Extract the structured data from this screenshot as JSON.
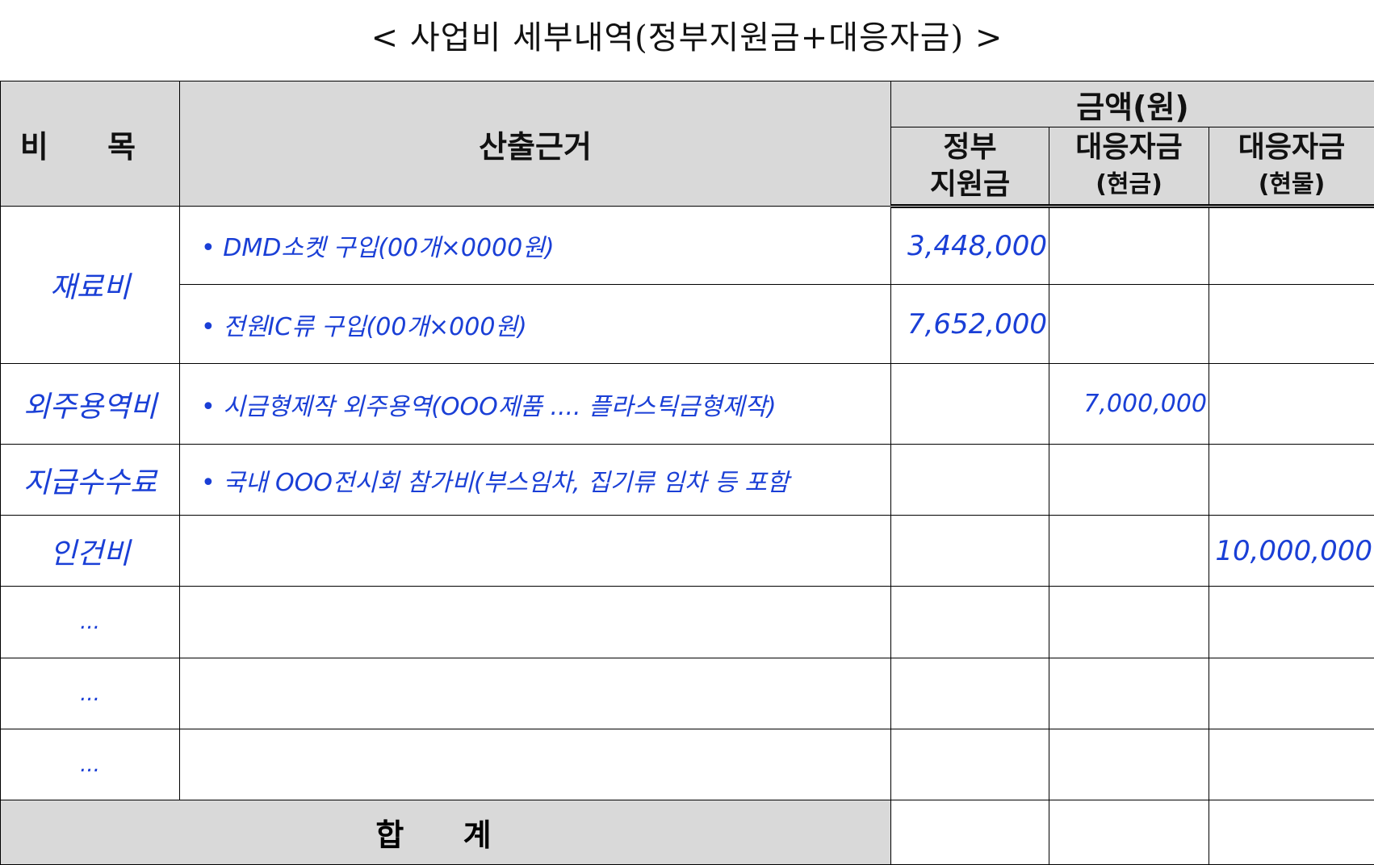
{
  "title": "< 사업비 세부내역(정부지원금+대응자금) >",
  "header": {
    "category": "비  목",
    "basis": "산출근거",
    "amount": "금액(원)",
    "gov_line1": "정부",
    "gov_line2": "지원금",
    "cash_line1": "대응자금",
    "cash_line2": "(현금)",
    "kind_line1": "대응자금",
    "kind_line2": "(현물)"
  },
  "rows": {
    "materials": {
      "category": "재료비",
      "items": [
        {
          "basis": "• DMD소켓 구입(00개×0000원)",
          "gov": "3,448,000",
          "cash": "",
          "kind": ""
        },
        {
          "basis": "• 전원IC류 구입(00개×000원)",
          "gov": "7,652,000",
          "cash": "",
          "kind": ""
        }
      ]
    },
    "outsourcing": {
      "category": "외주용역비",
      "basis": "• 시금형제작 외주용역(OOO제품 .... 플라스틱금형제작)",
      "gov": "",
      "cash": "7,000,000",
      "kind": ""
    },
    "fees": {
      "category": "지급수수료",
      "basis": "• 국내 OOO전시회 참가비(부스임차, 집기류 임차 등 포함",
      "gov": "",
      "cash": "",
      "kind": ""
    },
    "labor": {
      "category": "인건비",
      "basis": "",
      "gov": "",
      "cash": "",
      "kind": "10,000,000"
    },
    "extra": [
      {
        "category": "..."
      },
      {
        "category": "..."
      },
      {
        "category": "..."
      }
    ]
  },
  "total": {
    "label": "합 계"
  }
}
